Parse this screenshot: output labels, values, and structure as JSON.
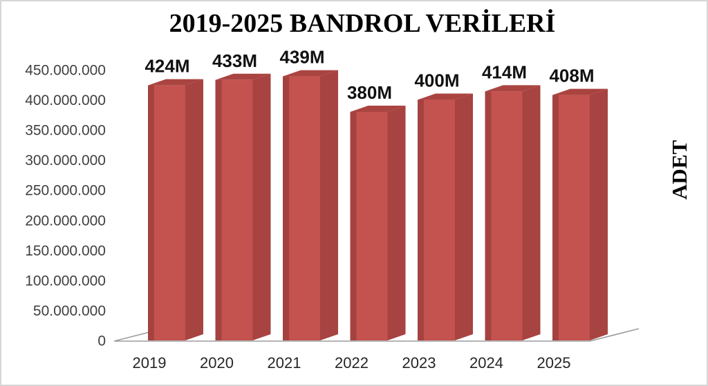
{
  "chart_data": {
    "type": "bar",
    "style": "3d-column",
    "title": "2019-2025 BANDROL VERİLERİ",
    "ylabel": "ADET",
    "xlabel": "",
    "categories": [
      "2019",
      "2020",
      "2021",
      "2022",
      "2023",
      "2024",
      "2025"
    ],
    "values": [
      424000000,
      433000000,
      439000000,
      380000000,
      400000000,
      414000000,
      408000000
    ],
    "data_labels": [
      "424M",
      "433M",
      "439M",
      "380M",
      "400M",
      "414M",
      "408M"
    ],
    "y_ticks": [
      {
        "value": 450000000,
        "label": "450.000.000"
      },
      {
        "value": 400000000,
        "label": "400.000.000"
      },
      {
        "value": 350000000,
        "label": "350.000.000"
      },
      {
        "value": 300000000,
        "label": "300.000.000"
      },
      {
        "value": 250000000,
        "label": "250.000.000"
      },
      {
        "value": 200000000,
        "label": "200.000.000"
      },
      {
        "value": 150000000,
        "label": "150.000.000"
      },
      {
        "value": 100000000,
        "label": "100.000.000"
      },
      {
        "value": 50000000,
        "label": "50.000.000"
      },
      {
        "value": 0,
        "label": "0"
      }
    ],
    "ylim": [
      0,
      450000000
    ],
    "grid": false,
    "legend": false,
    "colors": {
      "bar_front": "#C4524E",
      "bar_left_bevel": "#A44240",
      "bar_top": "#AA4441",
      "bar_side": "#A74341",
      "floor_line": "#9B9B9B",
      "tick_text": "#3F3F3F",
      "category_text": "#262626",
      "data_label_text": "#111111",
      "background": "#FFFFFF",
      "frame_border": "#D6D6D6"
    }
  }
}
